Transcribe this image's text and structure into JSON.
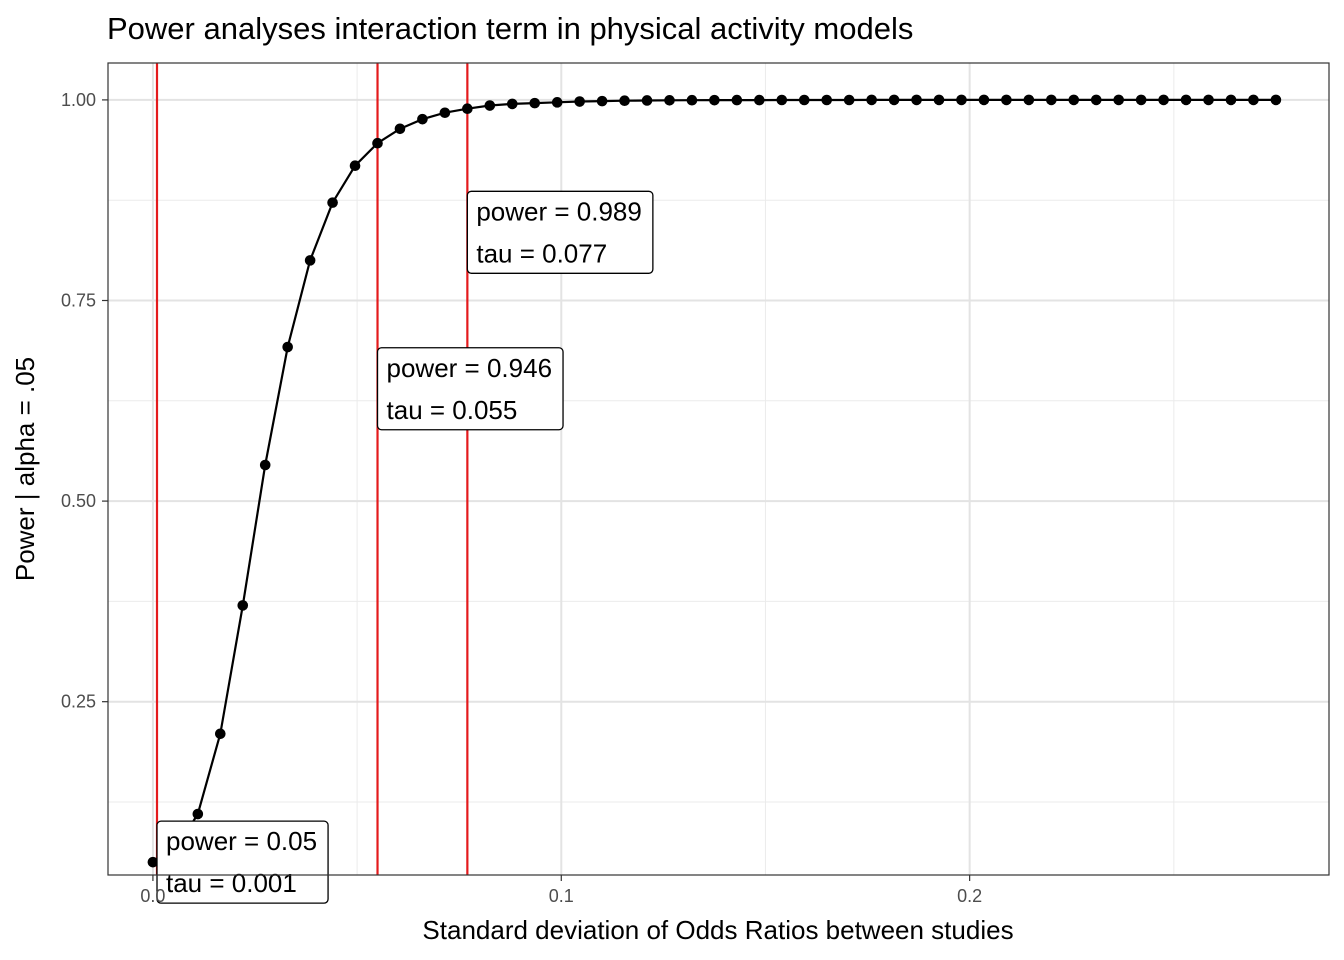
{
  "chart_data": {
    "type": "line",
    "title": "Power analyses interaction term in physical activity models",
    "xlabel": "Standard deviation of Odds Ratios between studies",
    "ylabel": "Power | alpha = .05",
    "xlim": [
      -0.011,
      0.288
    ],
    "ylim": [
      0.034,
      1.046
    ],
    "x_ticks": [
      0.0,
      0.1,
      0.2
    ],
    "x_tick_labels": [
      "0.0",
      "0.1",
      "0.2"
    ],
    "x_minor_ticks": [
      0.05,
      0.15,
      0.25
    ],
    "y_ticks": [
      0.25,
      0.5,
      0.75,
      1.0
    ],
    "y_tick_labels": [
      "0.25",
      "0.50",
      "0.75",
      "1.00"
    ],
    "y_minor_ticks": [
      0.125,
      0.375,
      0.625,
      0.875
    ],
    "grid": true,
    "line_color": "#000000",
    "vline_color": "#e41a1c",
    "series": [
      {
        "x": [
          0.0,
          0.0055,
          0.011,
          0.0165,
          0.022,
          0.0275,
          0.033,
          0.0385,
          0.044,
          0.0495,
          0.055,
          0.0605,
          0.066,
          0.0715,
          0.077,
          0.0825,
          0.088,
          0.0935,
          0.099,
          0.1045,
          0.11,
          0.1155,
          0.121,
          0.1265,
          0.132,
          0.1375,
          0.143,
          0.1485,
          0.154,
          0.1595,
          0.165,
          0.1705,
          0.176,
          0.1815,
          0.187,
          0.1925,
          0.198,
          0.2035,
          0.209,
          0.2145,
          0.22,
          0.2255,
          0.231,
          0.2365,
          0.242,
          0.2475,
          0.253,
          0.2585,
          0.264,
          0.2695,
          0.275
        ],
        "y": [
          0.05,
          0.065,
          0.11,
          0.21,
          0.37,
          0.545,
          0.692,
          0.8,
          0.872,
          0.918,
          0.946,
          0.964,
          0.976,
          0.984,
          0.989,
          0.993,
          0.995,
          0.996,
          0.997,
          0.998,
          0.9985,
          0.999,
          0.9993,
          0.9995,
          0.9996,
          0.9997,
          0.9998,
          0.9998,
          0.9999,
          0.9999,
          0.9999,
          0.9999,
          1.0,
          1.0,
          1.0,
          1.0,
          1.0,
          1.0,
          1.0,
          1.0,
          1.0,
          1.0,
          1.0,
          1.0,
          1.0,
          1.0,
          1.0,
          1.0,
          1.0,
          1.0,
          1.0
        ]
      }
    ],
    "vlines": [
      0.001,
      0.055,
      0.077
    ],
    "annotations": [
      {
        "x": 0.001,
        "y": 0.05,
        "line1": "power = 0.05",
        "line2": "tau =  0.001"
      },
      {
        "x": 0.055,
        "y": 0.64,
        "line1": "power = 0.946",
        "line2": "tau =  0.055"
      },
      {
        "x": 0.077,
        "y": 0.835,
        "line1": "power = 0.989",
        "line2": "tau =  0.077"
      }
    ]
  }
}
